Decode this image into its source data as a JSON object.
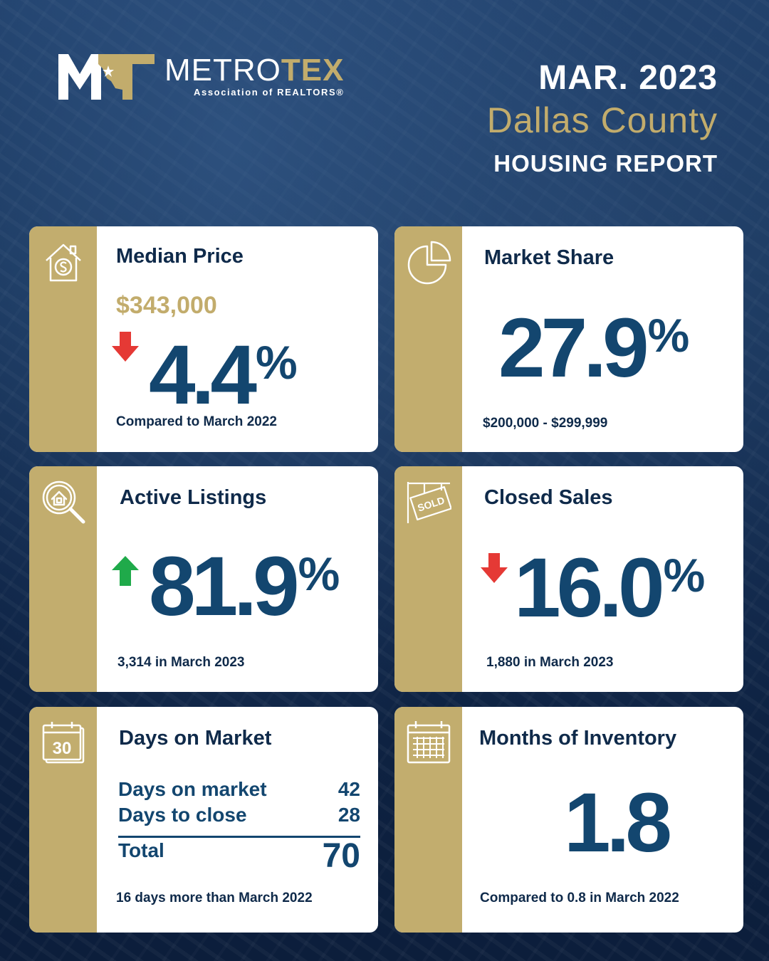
{
  "brand": {
    "name_part1": "METRO",
    "name_part2": "TEX",
    "subtitle": "Association of REALTORS®",
    "colors": {
      "navy": "#0f2544",
      "gold": "#c2ad6e",
      "blue": "#13466f"
    }
  },
  "header": {
    "date": "MAR. 2023",
    "county": "Dallas County",
    "report": "HOUSING REPORT"
  },
  "cards": {
    "median_price": {
      "icon": "house-dollar-icon",
      "title": "Median Price",
      "price": "$343,000",
      "direction": "down",
      "change": "4.4",
      "unit": "%",
      "note": "Compared to March 2022"
    },
    "market_share": {
      "icon": "pie-chart-icon",
      "title": "Market Share",
      "value": "27.9",
      "unit": "%",
      "note": "$200,000 - $299,999"
    },
    "active_listings": {
      "icon": "magnifier-house-icon",
      "title": "Active Listings",
      "direction": "up",
      "change": "81.9",
      "unit": "%",
      "note": "3,314 in March 2023"
    },
    "closed_sales": {
      "icon": "sold-sign-icon",
      "title": "Closed Sales",
      "direction": "down",
      "change": "16.0",
      "unit": "%",
      "note": "1,880 in March 2023"
    },
    "days_on_market": {
      "icon": "calendar-30-icon",
      "calendar_number": "30",
      "title": "Days on Market",
      "rows": [
        {
          "label": "Days on market",
          "value": "42"
        },
        {
          "label": "Days to close",
          "value": "28"
        }
      ],
      "total_label": "Total",
      "total_value": "70",
      "note": "16 days more than March 2022"
    },
    "months_inventory": {
      "icon": "calendar-grid-icon",
      "title": "Months of Inventory",
      "value": "1.8",
      "note": "Compared to 0.8 in March 2022"
    }
  }
}
